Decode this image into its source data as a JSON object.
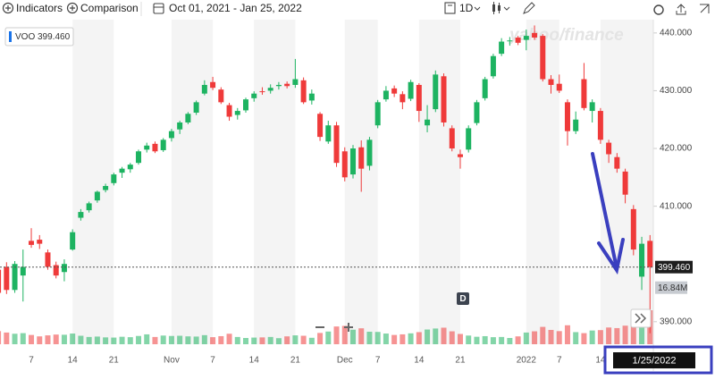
{
  "toolbar": {
    "indicators": "Indicators",
    "comparison": "Comparison",
    "range": "Oct 01, 2021 - Jan 25, 2022",
    "interval": "1D"
  },
  "watermark": "yahoo/finance",
  "crosshair_date": "1/25/2022",
  "event_marker": "D",
  "chart_data": {
    "type": "candlestick",
    "symbol": "VOO",
    "categories": [
      null,
      null,
      null,
      null,
      "7",
      null,
      null,
      null,
      null,
      "14",
      null,
      null,
      null,
      null,
      "21",
      null,
      null,
      null,
      null,
      null,
      null,
      "Nov",
      null,
      null,
      null,
      null,
      "7",
      null,
      null,
      null,
      null,
      "14",
      null,
      null,
      null,
      null,
      "21",
      null,
      null,
      null,
      null,
      null,
      "Dec",
      null,
      null,
      null,
      "7",
      null,
      null,
      null,
      null,
      "14",
      null,
      null,
      null,
      null,
      "21",
      null,
      null,
      null,
      null,
      null,
      null,
      null,
      "2022",
      null,
      null,
      null,
      "7",
      null,
      null,
      null,
      null,
      "14",
      null,
      null,
      null,
      null,
      null,
      null
    ],
    "open": [
      399.0,
      399.5,
      395.5,
      398.0,
      404.0,
      404.2,
      402.0,
      399.8,
      398.6,
      402.5,
      408.0,
      409.3,
      411.0,
      412.8,
      414.0,
      415.8,
      416.4,
      417.5,
      419.8,
      420.8,
      419.7,
      421.8,
      423.3,
      424.5,
      426.2,
      429.5,
      431.5,
      430.2,
      427.5,
      425.8,
      426.6,
      428.7,
      429.9,
      430.0,
      430.8,
      431.2,
      431.0,
      431.8,
      428.3,
      426.0,
      421.2,
      424.0,
      419.5,
      415.5,
      420.2,
      417.0,
      424.0,
      428.5,
      430.4,
      429.4,
      428.6,
      431.0,
      424.0,
      426.8,
      432.5,
      423.5,
      419.0,
      419.8,
      424.4,
      428.7,
      432.5,
      436.4,
      438.6,
      439.2,
      438.8,
      440.0,
      439.5,
      432.0,
      431.2,
      428.0,
      423.0,
      432.0,
      426.5,
      426.5,
      421.0,
      418.5,
      416.0,
      409.5,
      397.8,
      404.0
    ],
    "high": [
      400.0,
      400.3,
      400.5,
      402.5,
      406.2,
      405.0,
      402.5,
      400.4,
      400.8,
      406.0,
      409.5,
      410.8,
      412.7,
      413.9,
      415.8,
      416.8,
      417.5,
      419.8,
      421.0,
      421.2,
      421.8,
      423.4,
      424.8,
      426.3,
      428.3,
      431.8,
      432.4,
      430.6,
      427.9,
      427.0,
      428.8,
      429.9,
      430.6,
      431.1,
      431.5,
      431.6,
      435.5,
      432.3,
      430.2,
      426.3,
      424.8,
      424.6,
      420.2,
      420.6,
      421.4,
      422.0,
      428.4,
      430.8,
      430.9,
      429.9,
      431.9,
      431.3,
      427.5,
      433.5,
      433.0,
      424.0,
      419.8,
      424.0,
      428.4,
      432.4,
      436.4,
      439.1,
      439.3,
      439.5,
      440.6,
      441.3,
      439.8,
      432.7,
      432.8,
      428.5,
      426.4,
      434.8,
      428.5,
      427.0,
      421.5,
      419.2,
      416.5,
      410.2,
      404.7,
      405.0
    ],
    "low": [
      392.5,
      394.8,
      395.0,
      393.5,
      402.8,
      402.6,
      399.0,
      397.5,
      397.0,
      402.3,
      407.5,
      408.9,
      410.6,
      412.4,
      413.6,
      414.9,
      415.8,
      417.2,
      419.3,
      419.2,
      419.4,
      421.2,
      422.5,
      424.2,
      425.8,
      429.2,
      430.1,
      427.7,
      424.8,
      425.0,
      426.2,
      428.1,
      429.3,
      429.5,
      430.2,
      430.4,
      430.5,
      427.7,
      427.6,
      421.3,
      420.8,
      416.8,
      414.3,
      414.8,
      412.5,
      416.2,
      423.5,
      428.1,
      428.9,
      426.8,
      428.2,
      424.6,
      422.8,
      426.3,
      423.8,
      419.5,
      416.5,
      419.3,
      424.0,
      428.3,
      432.1,
      436.0,
      437.8,
      437.9,
      437.0,
      438.8,
      431.6,
      429.5,
      429.6,
      420.5,
      422.5,
      426.6,
      424.5,
      420.8,
      417.5,
      415.8,
      410.5,
      401.5,
      395.5,
      388.0
    ],
    "close": [
      395.0,
      395.5,
      400.0,
      399.5,
      403.3,
      403.5,
      399.5,
      398.0,
      400.0,
      405.5,
      409.0,
      410.5,
      412.5,
      413.5,
      415.5,
      416.5,
      417.2,
      419.5,
      420.5,
      419.5,
      421.5,
      423.0,
      424.5,
      426.0,
      428.0,
      431.0,
      430.5,
      428.0,
      425.5,
      426.5,
      428.5,
      429.5,
      429.8,
      430.5,
      431.0,
      430.8,
      432.0,
      428.0,
      429.5,
      422.0,
      424.0,
      417.5,
      415.0,
      420.0,
      416.5,
      421.5,
      428.0,
      430.0,
      429.5,
      428.0,
      431.5,
      426.5,
      425.0,
      432.8,
      424.5,
      420.0,
      418.5,
      423.5,
      428.0,
      432.0,
      436.0,
      438.5,
      438.7,
      438.3,
      439.5,
      439.2,
      432.0,
      431.0,
      430.0,
      423.0,
      425.0,
      427.0,
      428.0,
      421.5,
      419.0,
      416.5,
      412.0,
      402.5,
      403.5,
      399.46
    ],
    "last_close_label": "399.460",
    "volumes": [
      6.5,
      5.8,
      5.2,
      5.5,
      4.6,
      3.9,
      4.4,
      4.8,
      4.7,
      5.3,
      4.2,
      3.6,
      3.8,
      3.4,
      3.3,
      3.7,
      3.5,
      4.1,
      4.9,
      3.6,
      4.3,
      4.1,
      4.2,
      3.9,
      3.8,
      4.5,
      3.5,
      4.0,
      5.2,
      3.6,
      3.1,
      3.3,
      3.4,
      3.6,
      3.0,
      3.9,
      4.4,
      4.2,
      3.2,
      5.6,
      6.3,
      8.8,
      9.1,
      7.2,
      7.9,
      6.2,
      6.1,
      5.3,
      4.6,
      4.9,
      5.4,
      6.0,
      7.3,
      7.8,
      8.2,
      6.4,
      5.1,
      4.3,
      3.7,
      4.0,
      3.5,
      3.6,
      3.1,
      3.9,
      5.8,
      6.4,
      8.6,
      7.1,
      6.5,
      9.4,
      6.0,
      5.5,
      6.8,
      7.0,
      8.3,
      8.0,
      9.2,
      11.5,
      15.2,
      16.84
    ],
    "last_volume_label": "16.84M",
    "up_color": "#1db361",
    "down_color": "#ef3a3a",
    "ylim": [
      386.1,
      442.3
    ],
    "yticks": [
      {
        "value": 440,
        "label": "440.000"
      },
      {
        "value": 430,
        "label": "430.000"
      },
      {
        "value": 420,
        "label": "420.000"
      },
      {
        "value": 410,
        "label": "410.000"
      },
      {
        "value": 390,
        "label": "390.000"
      }
    ]
  }
}
